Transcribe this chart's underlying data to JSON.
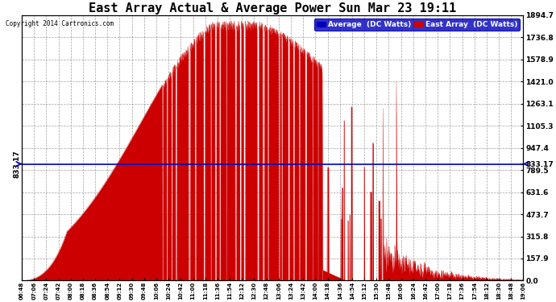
{
  "title": "East Array Actual & Average Power Sun Mar 23 19:11",
  "copyright": "Copyright 2014 Cartronics.com",
  "legend_blue": "Average  (DC Watts)",
  "legend_red": "East Array  (DC Watts)",
  "average_line": 833.17,
  "ymax": 1894.7,
  "ymin": 0.0,
  "yticks_right": [
    0.0,
    157.9,
    315.8,
    473.7,
    631.6,
    789.5,
    947.4,
    1105.3,
    1263.1,
    1421.0,
    1578.9,
    1736.8,
    1894.7
  ],
  "background_color": "#ffffff",
  "plot_bg_color": "#ffffff",
  "grid_color": "#888888",
  "fill_color": "#cc0000",
  "avg_line_color": "#0000bb",
  "title_fontsize": 11,
  "xtick_labels": [
    "06:48",
    "07:06",
    "07:24",
    "07:42",
    "08:00",
    "08:18",
    "08:36",
    "08:54",
    "09:12",
    "09:30",
    "09:48",
    "10:06",
    "10:24",
    "10:42",
    "11:00",
    "11:18",
    "11:36",
    "11:54",
    "12:12",
    "12:30",
    "12:48",
    "13:06",
    "13:24",
    "13:42",
    "14:00",
    "14:18",
    "14:36",
    "14:54",
    "15:12",
    "15:30",
    "15:48",
    "16:06",
    "16:24",
    "16:42",
    "17:00",
    "17:18",
    "17:36",
    "17:54",
    "18:12",
    "18:30",
    "18:48",
    "19:06"
  ]
}
